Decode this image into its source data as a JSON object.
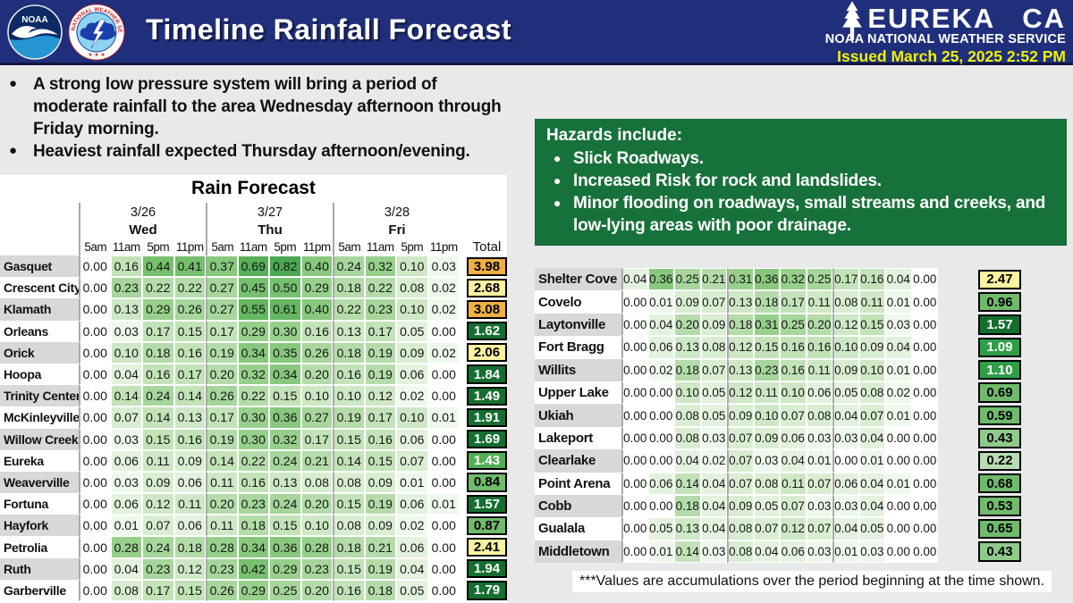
{
  "header": {
    "title": "Timeline Rainfall Forecast",
    "station_city": "EUREKA",
    "station_state": "CA",
    "agency": "NOAA NATIONAL WEATHER SERVICE",
    "issued": "Issued March 25, 2025 2:52 PM",
    "logos": {
      "noaa": "NOAA",
      "nws_ring": "NATIONAL WEATHER SERVICE",
      "nws_stars": "★ ★ ★"
    }
  },
  "bullets": [
    "A strong low pressure system will bring a period of moderate rainfall to the area Wednesday afternoon through Friday morning.",
    "Heaviest rainfall expected Thursday afternoon/evening."
  ],
  "hazards": {
    "title": "Hazards include:",
    "items": [
      "Slick Roadways.",
      "Increased Risk for rock and landslides.",
      "Minor flooding on roadways, small streams and creeks, and low-lying areas with poor drainage."
    ]
  },
  "footnote": "***Values are accumulations over the period beginning at the time shown.",
  "colors": {
    "header_bar": "#202f7c",
    "issued_text": "#eef200",
    "hazards_bg": "#17713a",
    "cell_scale": [
      [
        0.03,
        "#eff8ec"
      ],
      [
        0.06,
        "#e3f2de"
      ],
      [
        0.09,
        "#d9eed1"
      ],
      [
        0.13,
        "#cee8c5"
      ],
      [
        0.17,
        "#c2e3b8"
      ],
      [
        0.22,
        "#b4dcaa"
      ],
      [
        0.27,
        "#a6d69b"
      ],
      [
        0.33,
        "#97d08b"
      ],
      [
        0.4,
        "#88c87d"
      ],
      [
        0.5,
        "#76bf6e"
      ],
      [
        0.62,
        "#64b760"
      ],
      [
        0.75,
        "#56af57"
      ],
      [
        99,
        "#4aa950"
      ]
    ],
    "total_scale": [
      [
        0.3,
        "#b6ddb1",
        "#000000"
      ],
      [
        0.5,
        "#8eca8a",
        "#000000"
      ],
      [
        1.0,
        "#6fba6b",
        "#000000"
      ],
      [
        1.25,
        "#2f9e47",
        "#ffffff"
      ],
      [
        1.45,
        "#52ad57",
        "#ffffff"
      ],
      [
        2.0,
        "#156e2f",
        "#ffffff"
      ],
      [
        3.0,
        "#faf2a0",
        "#000000"
      ],
      [
        99,
        "#f0b044",
        "#000000"
      ]
    ]
  },
  "chart_data": [
    {
      "type": "heatmap",
      "title": "Rain Forecast",
      "dates": [
        "3/26",
        "3/27",
        "3/28"
      ],
      "days": [
        "Wed",
        "Thu",
        "Fri"
      ],
      "times": [
        "5am",
        "11am",
        "5pm",
        "11pm"
      ],
      "total_label": "Total",
      "rows": [
        {
          "name": "Gasquet",
          "values": [
            "0.00",
            "0.16",
            "0.44",
            "0.41",
            "0.37",
            "0.69",
            "0.82",
            "0.40",
            "0.24",
            "0.32",
            "0.10",
            "0.03"
          ],
          "total": "3.98"
        },
        {
          "name": "Crescent City",
          "values": [
            "0.00",
            "0.23",
            "0.22",
            "0.22",
            "0.27",
            "0.45",
            "0.50",
            "0.29",
            "0.18",
            "0.22",
            "0.08",
            "0.02"
          ],
          "total": "2.68"
        },
        {
          "name": "Klamath",
          "values": [
            "0.00",
            "0.13",
            "0.29",
            "0.26",
            "0.27",
            "0.55",
            "0.61",
            "0.40",
            "0.22",
            "0.23",
            "0.10",
            "0.02"
          ],
          "total": "3.08"
        },
        {
          "name": "Orleans",
          "values": [
            "0.00",
            "0.03",
            "0.17",
            "0.15",
            "0.17",
            "0.29",
            "0.30",
            "0.16",
            "0.13",
            "0.17",
            "0.05",
            "0.00"
          ],
          "total": "1.62"
        },
        {
          "name": "Orick",
          "values": [
            "0.00",
            "0.10",
            "0.18",
            "0.16",
            "0.19",
            "0.34",
            "0.35",
            "0.26",
            "0.18",
            "0.19",
            "0.09",
            "0.02"
          ],
          "total": "2.06"
        },
        {
          "name": "Hoopa",
          "values": [
            "0.00",
            "0.04",
            "0.16",
            "0.17",
            "0.20",
            "0.32",
            "0.34",
            "0.20",
            "0.16",
            "0.19",
            "0.06",
            "0.00"
          ],
          "total": "1.84"
        },
        {
          "name": "Trinity Center",
          "values": [
            "0.00",
            "0.14",
            "0.24",
            "0.14",
            "0.26",
            "0.22",
            "0.15",
            "0.10",
            "0.10",
            "0.12",
            "0.02",
            "0.00"
          ],
          "total": "1.49"
        },
        {
          "name": "McKinleyville",
          "values": [
            "0.00",
            "0.07",
            "0.14",
            "0.13",
            "0.17",
            "0.30",
            "0.36",
            "0.27",
            "0.19",
            "0.17",
            "0.10",
            "0.01"
          ],
          "total": "1.91"
        },
        {
          "name": "Willow Creek",
          "values": [
            "0.00",
            "0.03",
            "0.15",
            "0.16",
            "0.19",
            "0.30",
            "0.32",
            "0.17",
            "0.15",
            "0.16",
            "0.06",
            "0.00"
          ],
          "total": "1.69"
        },
        {
          "name": "Eureka",
          "values": [
            "0.00",
            "0.06",
            "0.11",
            "0.09",
            "0.14",
            "0.22",
            "0.24",
            "0.21",
            "0.14",
            "0.15",
            "0.07",
            "0.00"
          ],
          "total": "1.43"
        },
        {
          "name": "Weaverville",
          "values": [
            "0.00",
            "0.03",
            "0.09",
            "0.06",
            "0.11",
            "0.16",
            "0.13",
            "0.08",
            "0.08",
            "0.09",
            "0.01",
            "0.00"
          ],
          "total": "0.84"
        },
        {
          "name": "Fortuna",
          "values": [
            "0.00",
            "0.06",
            "0.12",
            "0.11",
            "0.20",
            "0.23",
            "0.24",
            "0.20",
            "0.15",
            "0.19",
            "0.06",
            "0.01"
          ],
          "total": "1.57"
        },
        {
          "name": "Hayfork",
          "values": [
            "0.00",
            "0.01",
            "0.07",
            "0.06",
            "0.11",
            "0.18",
            "0.15",
            "0.10",
            "0.08",
            "0.09",
            "0.02",
            "0.00"
          ],
          "total": "0.87"
        },
        {
          "name": "Petrolia",
          "values": [
            "0.00",
            "0.28",
            "0.24",
            "0.18",
            "0.28",
            "0.34",
            "0.36",
            "0.28",
            "0.18",
            "0.21",
            "0.06",
            "0.00"
          ],
          "total": "2.41"
        },
        {
          "name": "Ruth",
          "values": [
            "0.00",
            "0.04",
            "0.23",
            "0.12",
            "0.23",
            "0.42",
            "0.29",
            "0.23",
            "0.15",
            "0.19",
            "0.04",
            "0.00"
          ],
          "total": "1.94"
        },
        {
          "name": "Garberville",
          "values": [
            "0.00",
            "0.08",
            "0.17",
            "0.15",
            "0.26",
            "0.29",
            "0.25",
            "0.20",
            "0.16",
            "0.18",
            "0.05",
            "0.00"
          ],
          "total": "1.79"
        }
      ]
    },
    {
      "type": "heatmap",
      "rows": [
        {
          "name": "Shelter Cove",
          "values": [
            "0.04",
            "0.36",
            "0.25",
            "0.21",
            "0.31",
            "0.36",
            "0.32",
            "0.25",
            "0.17",
            "0.16",
            "0.04",
            "0.00"
          ],
          "total": "2.47"
        },
        {
          "name": "Covelo",
          "values": [
            "0.00",
            "0.01",
            "0.09",
            "0.07",
            "0.13",
            "0.18",
            "0.17",
            "0.11",
            "0.08",
            "0.11",
            "0.01",
            "0.00"
          ],
          "total": "0.96"
        },
        {
          "name": "Laytonville",
          "values": [
            "0.00",
            "0.04",
            "0.20",
            "0.09",
            "0.18",
            "0.31",
            "0.25",
            "0.20",
            "0.12",
            "0.15",
            "0.03",
            "0.00"
          ],
          "total": "1.57"
        },
        {
          "name": "Fort Bragg",
          "values": [
            "0.00",
            "0.06",
            "0.13",
            "0.08",
            "0.12",
            "0.15",
            "0.16",
            "0.16",
            "0.10",
            "0.09",
            "0.04",
            "0.00"
          ],
          "total": "1.09"
        },
        {
          "name": "Willits",
          "values": [
            "0.00",
            "0.02",
            "0.18",
            "0.07",
            "0.13",
            "0.23",
            "0.16",
            "0.11",
            "0.09",
            "0.10",
            "0.01",
            "0.00"
          ],
          "total": "1.10"
        },
        {
          "name": "Upper Lake",
          "values": [
            "0.00",
            "0.00",
            "0.10",
            "0.05",
            "0.12",
            "0.11",
            "0.10",
            "0.06",
            "0.05",
            "0.08",
            "0.02",
            "0.00"
          ],
          "total": "0.69"
        },
        {
          "name": "Ukiah",
          "values": [
            "0.00",
            "0.00",
            "0.08",
            "0.05",
            "0.09",
            "0.10",
            "0.07",
            "0.08",
            "0.04",
            "0.07",
            "0.01",
            "0.00"
          ],
          "total": "0.59"
        },
        {
          "name": "Lakeport",
          "values": [
            "0.00",
            "0.00",
            "0.08",
            "0.03",
            "0.07",
            "0.09",
            "0.06",
            "0.03",
            "0.03",
            "0.04",
            "0.00",
            "0.00"
          ],
          "total": "0.43"
        },
        {
          "name": "Clearlake",
          "values": [
            "0.00",
            "0.00",
            "0.04",
            "0.02",
            "0.07",
            "0.03",
            "0.04",
            "0.01",
            "0.00",
            "0.01",
            "0.00",
            "0.00"
          ],
          "total": "0.22"
        },
        {
          "name": "Point Arena",
          "values": [
            "0.00",
            "0.06",
            "0.14",
            "0.04",
            "0.07",
            "0.08",
            "0.11",
            "0.07",
            "0.06",
            "0.04",
            "0.01",
            "0.00"
          ],
          "total": "0.68"
        },
        {
          "name": "Cobb",
          "values": [
            "0.00",
            "0.00",
            "0.18",
            "0.04",
            "0.09",
            "0.05",
            "0.07",
            "0.03",
            "0.03",
            "0.04",
            "0.00",
            "0.00"
          ],
          "total": "0.53"
        },
        {
          "name": "Gualala",
          "values": [
            "0.00",
            "0.05",
            "0.13",
            "0.04",
            "0.08",
            "0.07",
            "0.12",
            "0.07",
            "0.04",
            "0.05",
            "0.00",
            "0.00"
          ],
          "total": "0.65"
        },
        {
          "name": "Middletown",
          "values": [
            "0.00",
            "0.01",
            "0.14",
            "0.03",
            "0.08",
            "0.04",
            "0.06",
            "0.03",
            "0.01",
            "0.03",
            "0.00",
            "0.00"
          ],
          "total": "0.43"
        }
      ]
    }
  ]
}
